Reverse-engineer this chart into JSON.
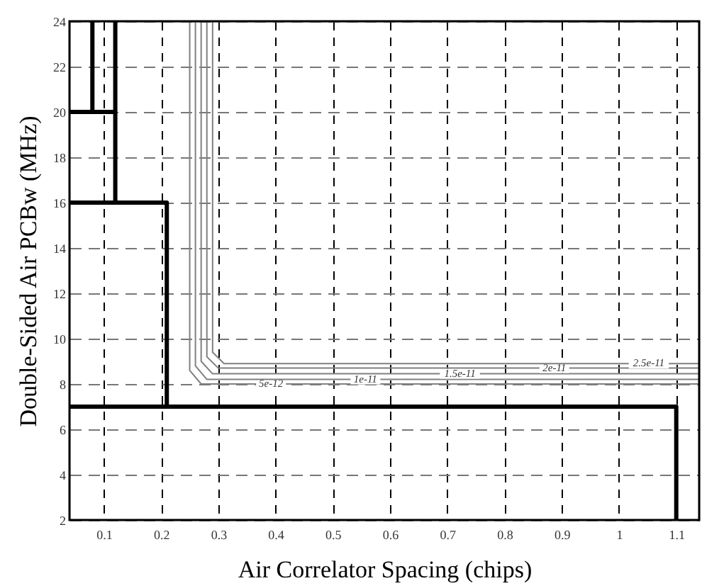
{
  "chart_data": {
    "type": "line",
    "xlabel": "Air Correlator Spacing (chips)",
    "ylabel": "Double-Sided Air PCBw (MHz)",
    "xlim": [
      0.04,
      1.14
    ],
    "xticks": [
      0.1,
      0.2,
      0.3,
      0.4,
      0.5,
      0.6,
      0.7,
      0.8,
      0.9,
      {
        "value": 1,
        "label": "1"
      },
      1.1
    ],
    "ylim": [
      2,
      24
    ],
    "yticks": [
      2,
      4,
      6,
      8,
      10,
      12,
      14,
      16,
      18,
      20,
      22,
      24
    ],
    "grid": true,
    "legend": false,
    "line_style": "solid",
    "marker": "none",
    "series": [
      {
        "color": "#000000",
        "x": [
          0.04,
          1.1,
          1.1
        ],
        "values": [
          7,
          7,
          2
        ]
      },
      {
        "color": "#000000",
        "x": [
          0.04,
          0.21,
          0.21
        ],
        "values": [
          16,
          16,
          7
        ]
      },
      {
        "color": "#000000",
        "x": [
          0.12,
          0.12
        ],
        "values": [
          16,
          24
        ]
      },
      {
        "color": "#000000",
        "x": [
          0.04,
          0.12
        ],
        "values": [
          20,
          20
        ]
      },
      {
        "color": "#000000",
        "x": [
          0.08,
          0.08
        ],
        "values": [
          20,
          24
        ]
      },
      {
        "name": "5e-12",
        "color": "#808080",
        "x": [
          0.25,
          0.25,
          0.27,
          1.14
        ],
        "values": [
          24,
          8.6,
          8.0,
          8.0
        ]
      },
      {
        "name": "1e-11",
        "color": "#808080",
        "x": [
          0.26,
          0.26,
          0.28,
          1.14
        ],
        "values": [
          24,
          8.8,
          8.2,
          8.2
        ]
      },
      {
        "name": "1.5e-11",
        "color": "#808080",
        "x": [
          0.27,
          0.27,
          0.29,
          1.14
        ],
        "values": [
          24,
          9.0,
          8.45,
          8.45
        ]
      },
      {
        "name": "2e-11",
        "color": "#808080",
        "x": [
          0.28,
          0.28,
          0.3,
          1.14
        ],
        "values": [
          24,
          9.2,
          8.7,
          8.7
        ]
      },
      {
        "name": "2.5e-11",
        "color": "#808080",
        "x": [
          0.29,
          0.29,
          0.31,
          1.14
        ],
        "values": [
          24,
          9.4,
          8.9,
          8.9
        ]
      }
    ]
  }
}
